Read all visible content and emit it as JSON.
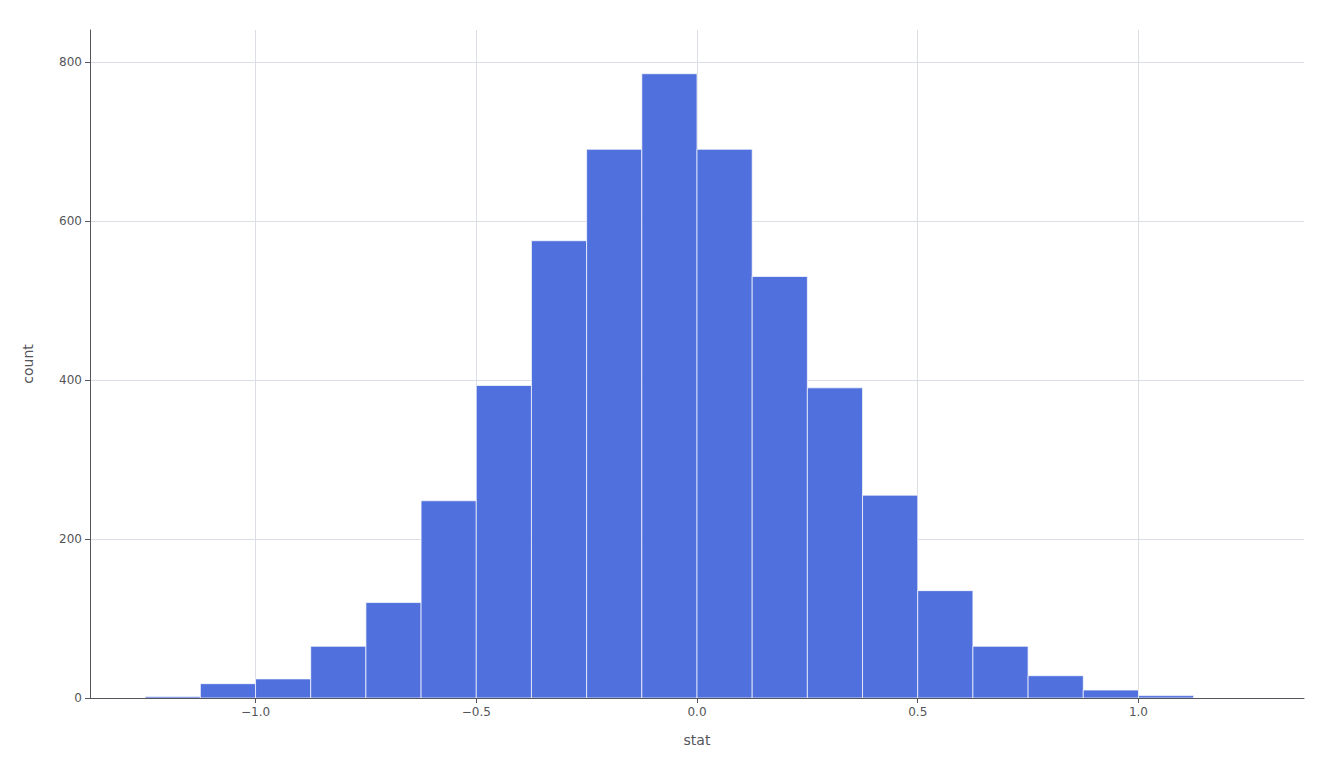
{
  "chart_data": {
    "type": "histogram",
    "xlabel": "stat",
    "ylabel": "count",
    "bins": [
      -1.25,
      -1.125,
      -1.0,
      -0.875,
      -0.75,
      -0.625,
      -0.5,
      -0.375,
      -0.25,
      -0.125,
      0.0,
      0.125,
      0.25,
      0.375,
      0.5,
      0.625,
      0.75,
      0.875,
      1.0,
      1.125,
      1.25
    ],
    "counts": [
      2,
      18,
      24,
      65,
      120,
      248,
      393,
      575,
      690,
      785,
      690,
      530,
      390,
      255,
      135,
      65,
      28,
      10,
      3,
      0
    ],
    "xlim": [
      -1.375,
      1.375
    ],
    "ylim": [
      0,
      840
    ],
    "xticks": [
      {
        "value": -1.0,
        "label": "−1.0"
      },
      {
        "value": -0.5,
        "label": "−0.5"
      },
      {
        "value": 0.0,
        "label": "0.0"
      },
      {
        "value": 0.5,
        "label": "0.5"
      },
      {
        "value": 1.0,
        "label": "1.0"
      }
    ],
    "yticks": [
      0,
      200,
      400,
      600,
      800
    ],
    "grid": true
  }
}
